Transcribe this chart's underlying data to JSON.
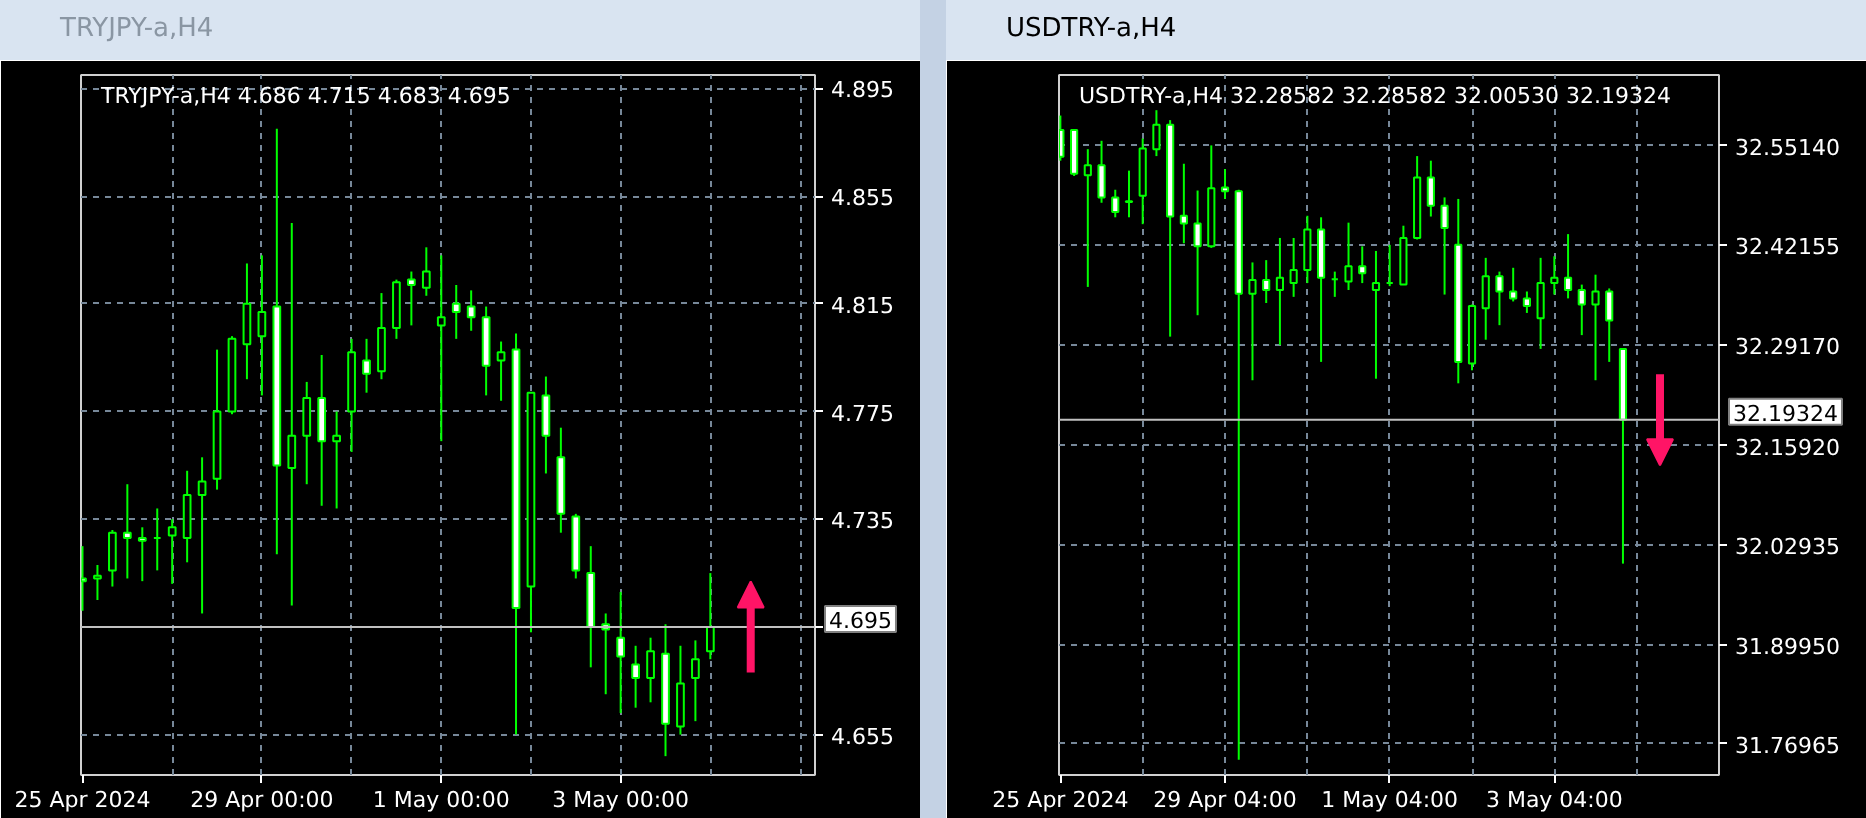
{
  "chart_data": [
    {
      "type": "candlestick",
      "title": "TRYJPY-a,H4",
      "subtitle": "TRYJPY-a,H4 4.686 4.715 4.683 4.695",
      "categories": [
        "25 Apr 2024",
        null,
        null,
        null,
        null,
        null,
        null,
        null,
        null,
        null,
        null,
        null,
        "29 Apr 00:00",
        null,
        null,
        null,
        null,
        null,
        null,
        null,
        null,
        null,
        null,
        null,
        "1 May 00:00",
        null,
        null,
        null,
        null,
        null,
        null,
        null,
        null,
        null,
        null,
        null,
        "3 May 00:00",
        null,
        null,
        null,
        null,
        null,
        null
      ],
      "ohlc": [
        [
          4.713,
          4.725,
          4.701,
          4.712
        ],
        [
          4.713,
          4.718,
          4.705,
          4.714
        ],
        [
          4.716,
          4.731,
          4.71,
          4.73
        ],
        [
          4.73,
          4.748,
          4.713,
          4.728
        ],
        [
          4.728,
          4.732,
          4.712,
          4.727
        ],
        [
          4.728,
          4.739,
          4.716,
          4.728
        ],
        [
          4.729,
          4.735,
          4.711,
          4.732
        ],
        [
          4.728,
          4.753,
          4.719,
          4.744
        ],
        [
          4.744,
          4.758,
          4.7,
          4.749
        ],
        [
          4.75,
          4.798,
          4.746,
          4.775
        ],
        [
          4.775,
          4.803,
          4.774,
          4.802
        ],
        [
          4.8,
          4.83,
          4.787,
          4.815
        ],
        [
          4.803,
          4.833,
          4.781,
          4.812
        ],
        [
          4.814,
          4.88,
          4.722,
          4.755
        ],
        [
          4.754,
          4.845,
          4.703,
          4.766
        ],
        [
          4.766,
          4.786,
          4.748,
          4.78
        ],
        [
          4.78,
          4.796,
          4.74,
          4.764
        ],
        [
          4.764,
          4.775,
          4.739,
          4.766
        ],
        [
          4.775,
          4.802,
          4.76,
          4.797
        ],
        [
          4.794,
          4.802,
          4.782,
          4.789
        ],
        [
          4.79,
          4.819,
          4.787,
          4.806
        ],
        [
          4.806,
          4.824,
          4.802,
          4.823
        ],
        [
          4.824,
          4.827,
          4.807,
          4.822
        ],
        [
          4.821,
          4.836,
          4.818,
          4.827
        ],
        [
          4.807,
          4.833,
          4.764,
          4.81
        ],
        [
          4.815,
          4.822,
          4.802,
          4.812
        ],
        [
          4.814,
          4.82,
          4.805,
          4.81
        ],
        [
          4.81,
          4.814,
          4.781,
          4.792
        ],
        [
          4.794,
          4.801,
          4.779,
          4.797
        ],
        [
          4.798,
          4.804,
          4.655,
          4.702
        ],
        [
          4.71,
          4.782,
          4.693,
          4.782
        ],
        [
          4.781,
          4.788,
          4.752,
          4.766
        ],
        [
          4.758,
          4.769,
          4.73,
          4.737
        ],
        [
          4.736,
          4.737,
          4.713,
          4.716
        ],
        [
          4.715,
          4.725,
          4.68,
          4.695
        ],
        [
          4.696,
          4.7,
          4.67,
          4.694
        ],
        [
          4.691,
          4.708,
          4.663,
          4.684
        ],
        [
          4.681,
          4.688,
          4.665,
          4.676
        ],
        [
          4.676,
          4.691,
          4.667,
          4.686
        ],
        [
          4.685,
          4.696,
          4.647,
          4.659
        ],
        [
          4.658,
          4.688,
          4.655,
          4.674
        ],
        [
          4.676,
          4.69,
          4.66,
          4.683
        ],
        [
          4.686,
          4.715,
          4.683,
          4.695
        ]
      ],
      "color": "#00ff00",
      "colors": [
        "#ffffff",
        "#000000",
        "#000000",
        "#ffffff",
        "#ffffff",
        "#00ff00",
        "#000000",
        "#000000",
        "#000000",
        "#000000",
        "#000000",
        "#000000",
        "#000000",
        "#ffffff",
        "#000000",
        "#000000",
        "#ffffff",
        "#000000",
        "#000000",
        "#ffffff",
        "#000000",
        "#000000",
        "#ffffff",
        "#000000",
        "#000000",
        "#ffffff",
        "#ffffff",
        "#ffffff",
        "#000000",
        "#ffffff",
        "#000000",
        "#ffffff",
        "#ffffff",
        "#ffffff",
        "#ffffff",
        "#ffffff",
        "#ffffff",
        "#ffffff",
        "#000000",
        "#ffffff",
        "#000000",
        "#000000",
        "#000000"
      ],
      "ylim": [
        4.64,
        4.9
      ],
      "yticks": [
        4.895,
        4.855,
        4.815,
        4.775,
        4.735,
        {
          "value": 4.695,
          "label": null
        },
        4.655
      ],
      "grid": true,
      "ref_lines": [
        {
          "axis": "y",
          "value": 4.695,
          "label": "4.695",
          "color": "#c0c0c0"
        }
      ]
    },
    {
      "type": "candlestick",
      "title": "USDTRY-a,H4",
      "subtitle": "USDTRY-a,H4 32.28582 32.28582 32.00530 32.19324",
      "categories": [
        "25 Apr 2024",
        null,
        null,
        null,
        null,
        null,
        null,
        null,
        null,
        null,
        null,
        null,
        "29 Apr 04:00",
        null,
        null,
        null,
        null,
        null,
        null,
        null,
        null,
        null,
        null,
        null,
        "1 May 04:00",
        null,
        null,
        null,
        null,
        null,
        null,
        null,
        null,
        null,
        null,
        null,
        "3 May 04:00",
        null,
        null,
        null,
        null,
        null
      ],
      "ohlc": [
        [
          32.572,
          32.591,
          32.532,
          32.537
        ],
        [
          32.572,
          32.573,
          32.512,
          32.515
        ],
        [
          32.513,
          32.547,
          32.367,
          32.526
        ],
        [
          32.526,
          32.558,
          32.477,
          32.484
        ],
        [
          32.484,
          32.494,
          32.458,
          32.465
        ],
        [
          32.479,
          32.519,
          32.458,
          32.478
        ],
        [
          32.486,
          32.561,
          32.449,
          32.548
        ],
        [
          32.547,
          32.598,
          32.538,
          32.579
        ],
        [
          32.579,
          32.585,
          32.302,
          32.459
        ],
        [
          32.46,
          32.528,
          32.424,
          32.45
        ],
        [
          32.45,
          32.493,
          32.33,
          32.42
        ],
        [
          32.42,
          32.552,
          32.418,
          32.496
        ],
        [
          32.497,
          32.521,
          32.482,
          32.492
        ],
        [
          32.492,
          32.494,
          31.749,
          32.358
        ],
        [
          32.358,
          32.399,
          32.245,
          32.376
        ],
        [
          32.376,
          32.402,
          32.346,
          32.363
        ],
        [
          32.363,
          32.431,
          32.291,
          32.379
        ],
        [
          32.372,
          32.431,
          32.354,
          32.389
        ],
        [
          32.389,
          32.46,
          32.372,
          32.442
        ],
        [
          32.442,
          32.458,
          32.269,
          32.379
        ],
        [
          32.377,
          32.387,
          32.354,
          32.377
        ],
        [
          32.374,
          32.451,
          32.363,
          32.394
        ],
        [
          32.394,
          32.42,
          32.372,
          32.385
        ],
        [
          32.363,
          32.414,
          32.247,
          32.372
        ],
        [
          32.372,
          32.422,
          32.368,
          32.372
        ],
        [
          32.37,
          32.447,
          32.37,
          32.431
        ],
        [
          32.431,
          32.538,
          32.429,
          32.51
        ],
        [
          32.51,
          32.532,
          32.459,
          32.473
        ],
        [
          32.473,
          32.484,
          32.357,
          32.444
        ],
        [
          32.422,
          32.482,
          32.241,
          32.269
        ],
        [
          32.267,
          32.344,
          32.258,
          32.342
        ],
        [
          32.339,
          32.405,
          32.298,
          32.381
        ],
        [
          32.381,
          32.387,
          32.317,
          32.361
        ],
        [
          32.361,
          32.392,
          32.348,
          32.352
        ],
        [
          32.352,
          32.361,
          32.333,
          32.342
        ],
        [
          32.326,
          32.405,
          32.286,
          32.372
        ],
        [
          32.372,
          32.407,
          32.357,
          32.379
        ],
        [
          32.379,
          32.436,
          32.352,
          32.363
        ],
        [
          32.363,
          32.37,
          32.304,
          32.344
        ],
        [
          32.344,
          32.383,
          32.245,
          32.361
        ],
        [
          32.361,
          32.365,
          32.269,
          32.323
        ],
        [
          32.28582,
          32.28582,
          32.0053,
          32.19324
        ]
      ],
      "color": "#00ff00",
      "colors": [
        "#ffffff",
        "#ffffff",
        "#000000",
        "#ffffff",
        "#ffffff",
        "#ffffff",
        "#000000",
        "#000000",
        "#ffffff",
        "#ffffff",
        "#ffffff",
        "#000000",
        "#ffffff",
        "#ffffff",
        "#000000",
        "#ffffff",
        "#000000",
        "#000000",
        "#000000",
        "#ffffff",
        "#00ff00",
        "#000000",
        "#ffffff",
        "#000000",
        "#00ff00",
        "#000000",
        "#000000",
        "#ffffff",
        "#ffffff",
        "#ffffff",
        "#000000",
        "#000000",
        "#ffffff",
        "#ffffff",
        "#ffffff",
        "#000000",
        "#000000",
        "#ffffff",
        "#ffffff",
        "#000000",
        "#ffffff",
        "#ffffff"
      ],
      "ylim": [
        31.729,
        32.644
      ],
      "yticks": [
        {
          "value": 32.5514,
          "label": "32.55140"
        },
        32.42155,
        {
          "value": 32.2917,
          "label": "32.29170"
        },
        {
          "value": 32.1592,
          "label": "32.15920"
        },
        32.02935,
        {
          "value": 31.8995,
          "label": "31.89950"
        },
        31.76965
      ],
      "grid": true,
      "ref_lines": [
        {
          "axis": "y",
          "value": 32.19324,
          "label": "32.19324",
          "color": "#c0c0c0"
        }
      ]
    }
  ]
}
